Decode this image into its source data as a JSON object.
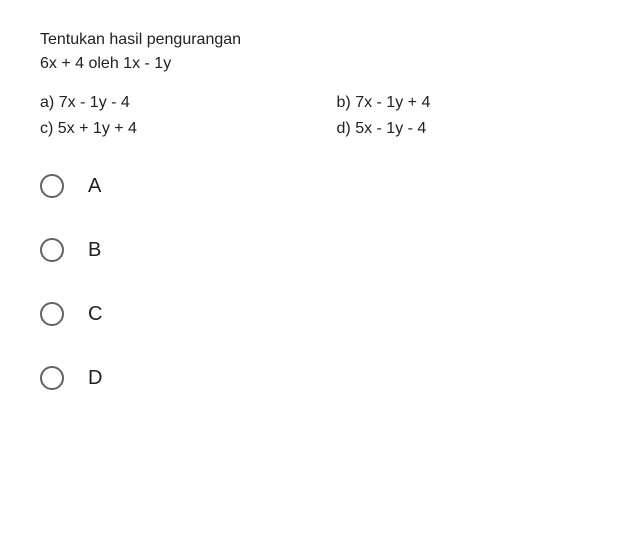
{
  "question": {
    "line1": "Tentukan hasil pengurangan",
    "line2": "6x + 4 oleh 1x - 1y"
  },
  "choices": {
    "a": {
      "prefix": "a)",
      "text": "7x - 1y - 4"
    },
    "b": {
      "prefix": "b)",
      "text": "7x - 1y + 4"
    },
    "c": {
      "prefix": "c)",
      "text": "5x + 1y + 4"
    },
    "d": {
      "prefix": "d)",
      "text": "5x - 1y - 4"
    }
  },
  "radios": {
    "a": "A",
    "b": "B",
    "c": "C",
    "d": "D"
  },
  "colors": {
    "text": "#202124",
    "radio_border": "#5f6368",
    "background": "#ffffff"
  },
  "typography": {
    "question_fontsize": 16,
    "radio_label_fontsize": 20,
    "font_family": "Arial"
  }
}
